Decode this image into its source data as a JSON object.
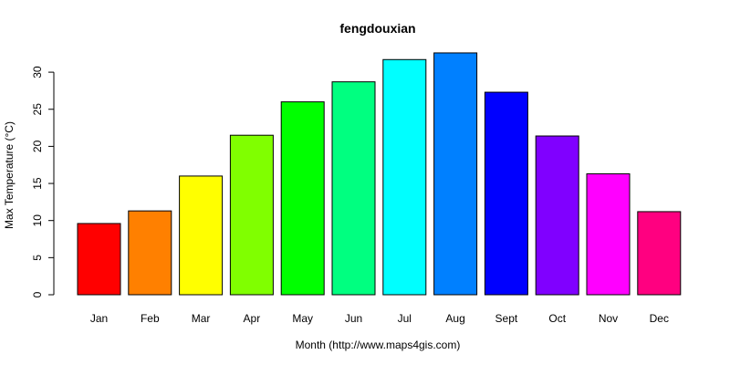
{
  "chart_data": {
    "type": "bar",
    "title": "fengdouxian",
    "xlabel": "Month (http://www.maps4gis.com)",
    "ylabel": "Max Temperature (°C)",
    "ylim": [
      0,
      33
    ],
    "yticks": [
      0,
      5,
      10,
      15,
      20,
      25,
      30
    ],
    "grid": false,
    "categories": [
      "Jan",
      "Feb",
      "Mar",
      "Apr",
      "May",
      "Jun",
      "Jul",
      "Aug",
      "Sept",
      "Oct",
      "Nov",
      "Dec"
    ],
    "values": [
      9.6,
      11.3,
      16.0,
      21.5,
      26.0,
      28.7,
      31.7,
      32.6,
      27.3,
      21.4,
      16.3,
      11.2
    ],
    "colors": [
      "#FF0000",
      "#FF8000",
      "#FFFF00",
      "#80FF00",
      "#00FF00",
      "#00FF80",
      "#00FFFF",
      "#0080FF",
      "#0000FF",
      "#8000FF",
      "#FF00FF",
      "#FF0080"
    ]
  }
}
